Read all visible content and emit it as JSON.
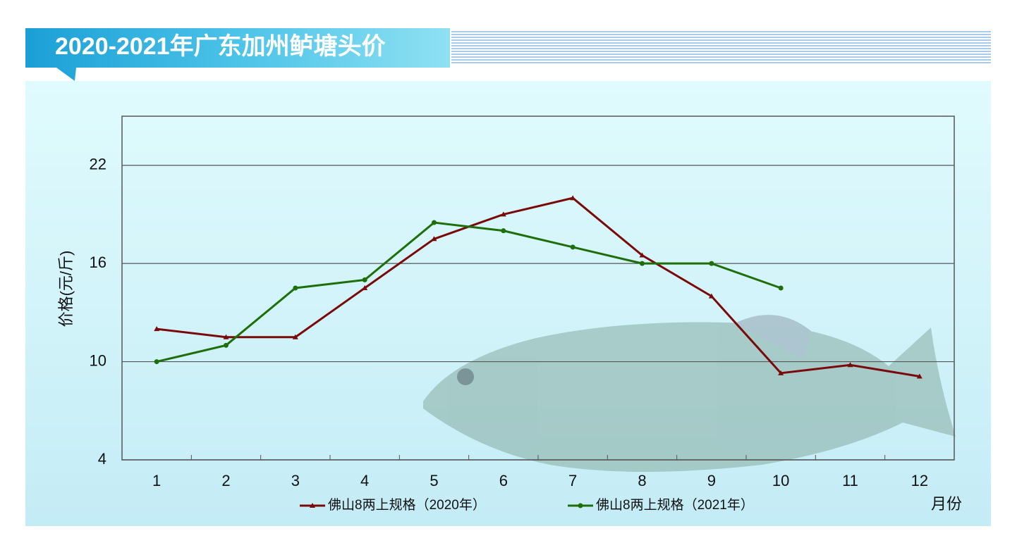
{
  "chart_data": {
    "type": "line",
    "title": "2020-2021年广东加州鲈塘头价",
    "x_label": "月份",
    "y_label": "价格(元/斤)",
    "categories": [
      "1",
      "2",
      "3",
      "4",
      "5",
      "6",
      "7",
      "8",
      "9",
      "10",
      "11",
      "12"
    ],
    "series": [
      {
        "name": "佛山8两上规格（2020年）",
        "color": "#7a0a0a",
        "marker": "triangle",
        "values": [
          12,
          11.5,
          11.5,
          14.5,
          17.5,
          19,
          20,
          16.5,
          14,
          9.3,
          9.8,
          9.1
        ]
      },
      {
        "name": "佛山8两上规格（2021年）",
        "color": "#1e6e0a",
        "marker": "circle",
        "values": [
          10,
          11,
          14.5,
          15,
          18.5,
          18,
          17,
          16,
          16,
          14.5,
          null,
          null
        ]
      }
    ],
    "ylim": [
      4,
      25
    ],
    "yticks": [
      4,
      10,
      16,
      22
    ],
    "grid": true
  }
}
